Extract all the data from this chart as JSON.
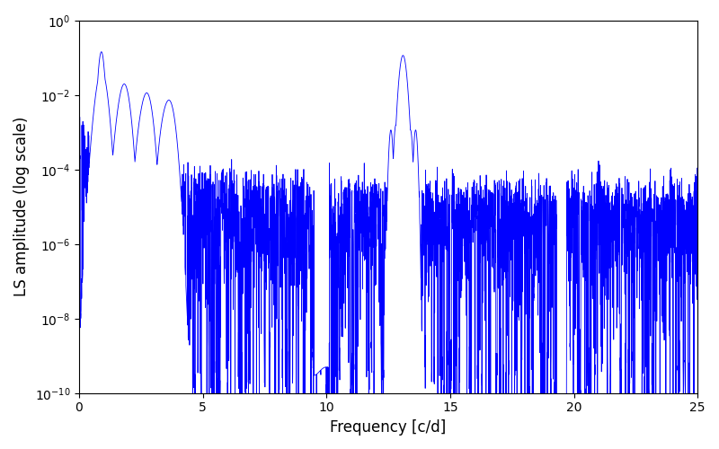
{
  "title": "",
  "xlabel": "Frequency [c/d]",
  "ylabel": "LS amplitude (log scale)",
  "line_color": "#0000ff",
  "line_width": 0.6,
  "xlim": [
    0,
    25
  ],
  "ylim": [
    1e-10,
    1
  ],
  "freq_min": 0.0,
  "freq_max": 25.0,
  "n_points": 5000,
  "seed": 42,
  "peak1_freq": 0.9,
  "peak1_amp": 0.15,
  "peak2_freq": 13.1,
  "peak2_amp": 0.12,
  "noise_floor": 1e-05,
  "background_color": "#ffffff",
  "figsize": [
    8.0,
    5.0
  ],
  "dpi": 100
}
